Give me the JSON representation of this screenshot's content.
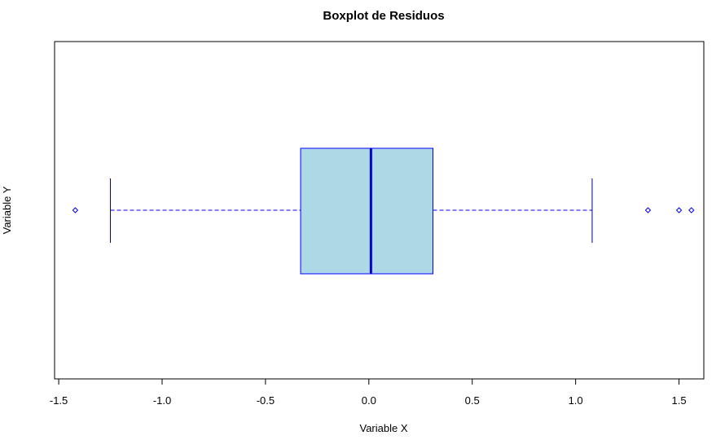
{
  "chart_data": {
    "type": "boxplot",
    "orientation": "horizontal",
    "title": "Boxplot de Residuos",
    "xlabel": "Variable X",
    "ylabel": "Variable Y",
    "xlim": [
      -1.52,
      1.62
    ],
    "x_ticks": [
      -1.5,
      -1.0,
      -0.5,
      0.0,
      0.5,
      1.0,
      1.5
    ],
    "x_tick_labels": [
      "-1.5",
      "-1.0",
      "-0.5",
      "0.0",
      "0.5",
      "1.0",
      "1.5"
    ],
    "box": {
      "whisker_low": -1.25,
      "q1": -0.33,
      "median": 0.01,
      "q3": 0.31,
      "whisker_high": 1.08
    },
    "outliers": [
      -1.42,
      1.35,
      1.5,
      1.56
    ],
    "grid": false,
    "colors": {
      "box_fill": "#add8e6",
      "box_border": "#0000ff",
      "median_line": "#0000cd",
      "whisker_line": "#0000ff",
      "whisker_cap": "#00008b",
      "outlier": "#0000ff",
      "axis": "#000000"
    }
  }
}
